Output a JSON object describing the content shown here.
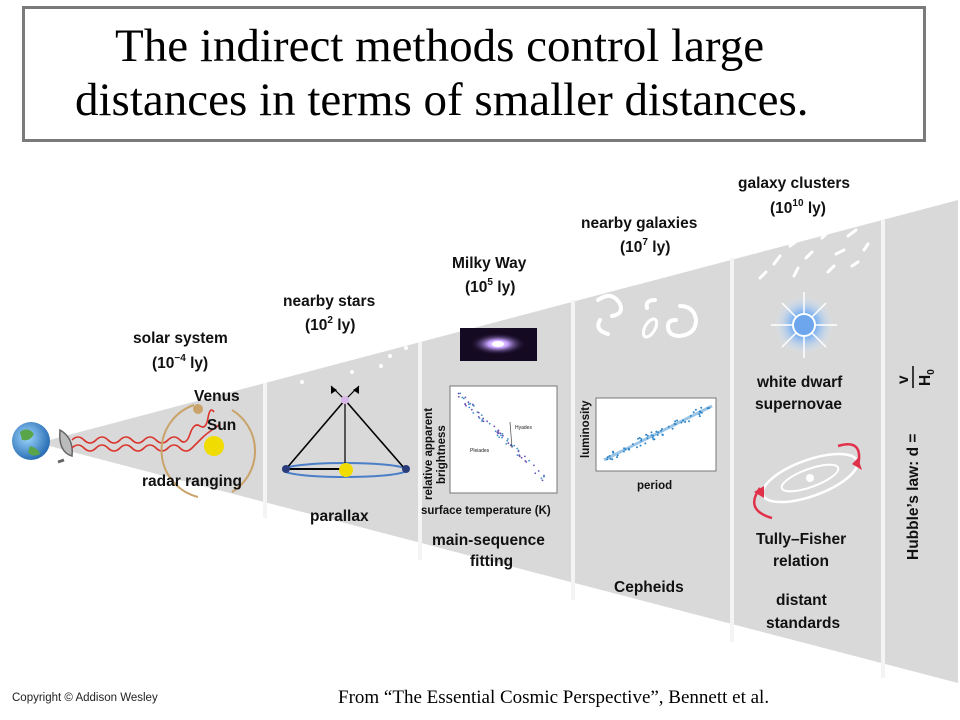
{
  "slide": {
    "title_line1": "The indirect methods control large",
    "title_line2": "distances in terms of smaller distances.",
    "source": "From “The Essential Cosmic Perspective”, Bennett et al.",
    "copyright": "Copyright © Addison Wesley"
  },
  "diagram": {
    "colors": {
      "panel_bg": "#d9d9d9",
      "panel_divider": "#f2f2f2",
      "radar_wave": "#d9342b",
      "sun": "#f0dc00"
    },
    "sections": [
      {
        "name": "solar system",
        "scale_base": "(10",
        "scale_exp": "−4",
        "scale_unit": " ly)",
        "labels": [
          "Venus",
          "Sun",
          "radar ranging"
        ]
      },
      {
        "name": "nearby stars",
        "scale_base": "(10",
        "scale_exp": "2",
        "scale_unit": " ly)",
        "labels": [
          "parallax"
        ]
      },
      {
        "name": "Milky Way",
        "scale_base": "(10",
        "scale_exp": "5",
        "scale_unit": " ly)",
        "labels": [
          "main-sequence",
          "fitting"
        ],
        "plot": {
          "ylabel_line1": "relative apparent",
          "ylabel_line2": "brightness",
          "xlabel": "surface temperature (K)",
          "cluster1": "Pleiades",
          "cluster2": "Hyades"
        }
      },
      {
        "name": "nearby galaxies",
        "scale_base": "(10",
        "scale_exp": "7",
        "scale_unit": " ly)",
        "labels": [
          "Cepheids"
        ],
        "plot": {
          "ylabel": "luminosity",
          "xlabel": "period"
        }
      },
      {
        "name": "galaxy clusters",
        "scale_base": "(10",
        "scale_exp": "10",
        "scale_unit": " ly)",
        "labels": [
          "white dwarf",
          "supernovae",
          "Tully–Fisher",
          "relation",
          "distant",
          "standards"
        ]
      }
    ],
    "hubble": {
      "prefix": "Hubble’s law: d = ",
      "numerator": "v",
      "denominator": "H",
      "sub": "0"
    }
  }
}
